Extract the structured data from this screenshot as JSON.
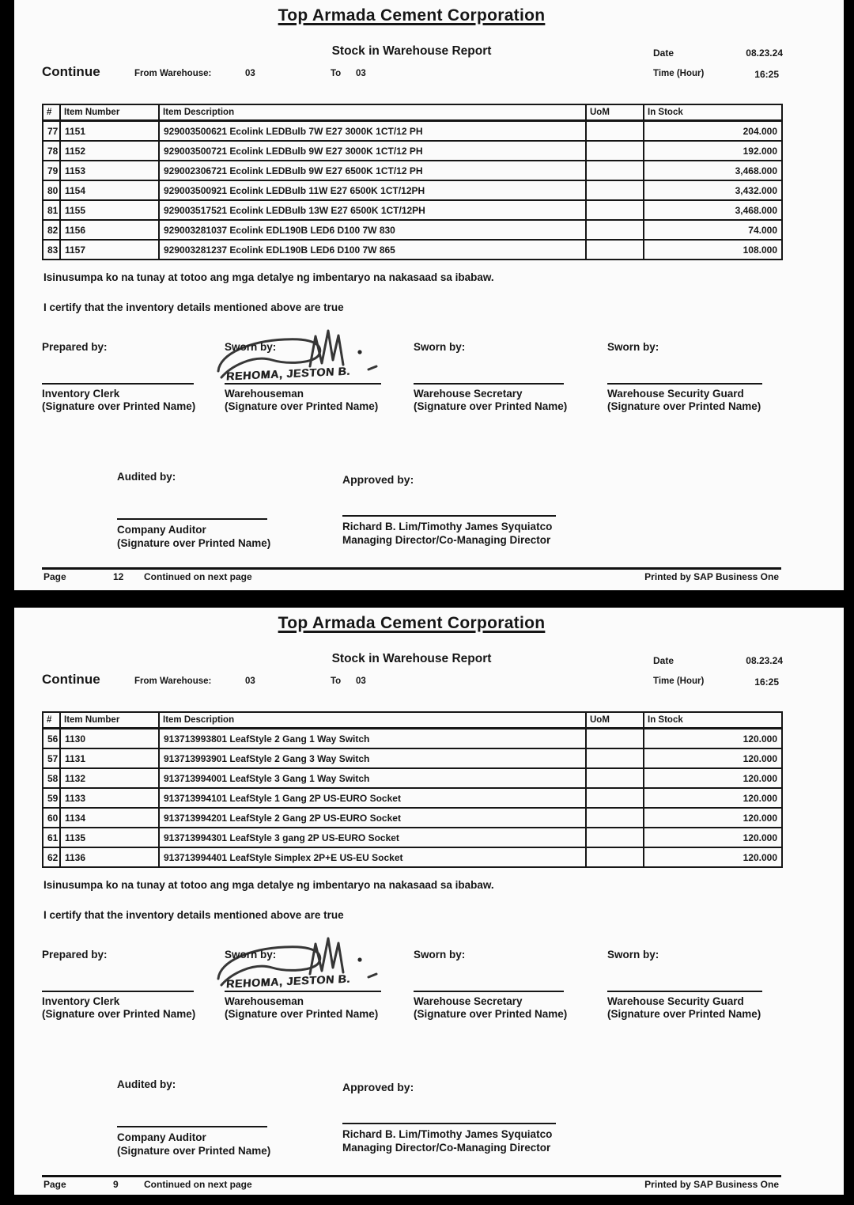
{
  "colors": {
    "surround": "#000000",
    "page_bg": "#fbfbfb",
    "text": "#161616"
  },
  "report": {
    "company": "Top Armada Cement Corporation",
    "title": "Stock in Warehouse Report",
    "continue_label": "Continue",
    "from_warehouse_label": "From Warehouse:",
    "from_warehouse": "03",
    "to_label": "To",
    "to_warehouse": "03",
    "date_label": "Date",
    "date": "08.23.24",
    "time_label": "Time (Hour)",
    "time": "16:25"
  },
  "table_headers": {
    "num": "#",
    "item_number": "Item Number",
    "item_description": "Item Description",
    "uom": "UoM",
    "in_stock": "In Stock"
  },
  "certification": {
    "tagalog": "Isinusumpa ko na tunay at totoo ang mga detalye ng imbentaryo na nakasaad sa ibabaw.",
    "english": "I certify that the inventory details mentioned above are true"
  },
  "signatures": {
    "prepared_by_label": "Prepared by:",
    "sworn_by_label": "Sworn by:",
    "handwritten_name": "REHOMA, JESTON B.",
    "role_1": "Inventory Clerk",
    "role_2": "Warehouseman",
    "role_3": "Warehouse Secretary",
    "role_4": "Warehouse Security Guard",
    "signature_caption": "(Signature over Printed Name)",
    "audited_by_label": "Audited by:",
    "auditor_role": "Company Auditor",
    "approved_by_label": "Approved by:",
    "approver_names": "Richard B. Lim/Timothy James Syquiatco",
    "approver_roles": "Managing Director/Co-Managing Director"
  },
  "footer": {
    "page_label": "Page",
    "continued": "Continued on next page",
    "printed_by": "Printed by SAP Business One"
  },
  "pages": [
    {
      "page_number": "12",
      "rows": [
        [
          "77",
          "1151",
          "929003500621 Ecolink LEDBulb 7W E27 3000K 1CT/12 PH",
          "",
          "204.000"
        ],
        [
          "78",
          "1152",
          "929003500721 Ecolink LEDBulb 9W E27 3000K 1CT/12 PH",
          "",
          "192.000"
        ],
        [
          "79",
          "1153",
          "929002306721 Ecolink LEDBulb 9W E27 6500K 1CT/12 PH",
          "",
          "3,468.000"
        ],
        [
          "80",
          "1154",
          "929003500921 Ecolink LEDBulb 11W E27 6500K 1CT/12PH",
          "",
          "3,432.000"
        ],
        [
          "81",
          "1155",
          "929003517521 Ecolink LEDBulb 13W E27 6500K 1CT/12PH",
          "",
          "3,468.000"
        ],
        [
          "82",
          "1156",
          "929003281037 Ecolink EDL190B LED6 D100 7W 830",
          "",
          "74.000"
        ],
        [
          "83",
          "1157",
          "929003281237 Ecolink EDL190B LED6 D100 7W 865",
          "",
          "108.000"
        ]
      ]
    },
    {
      "page_number": "9",
      "rows": [
        [
          "56",
          "1130",
          "913713993801 LeafStyle 2 Gang 1 Way Switch",
          "",
          "120.000"
        ],
        [
          "57",
          "1131",
          "913713993901 LeafStyle 2 Gang 3 Way Switch",
          "",
          "120.000"
        ],
        [
          "58",
          "1132",
          "913713994001 LeafStyle 3 Gang 1 Way Switch",
          "",
          "120.000"
        ],
        [
          "59",
          "1133",
          "913713994101 LeafStyle 1 Gang 2P US-EURO Socket",
          "",
          "120.000"
        ],
        [
          "60",
          "1134",
          "913713994201 LeafStyle 2 Gang 2P US-EURO Socket",
          "",
          "120.000"
        ],
        [
          "61",
          "1135",
          "913713994301 LeafStyle 3 gang 2P US-EURO Socket",
          "",
          "120.000"
        ],
        [
          "62",
          "1136",
          "913713994401 LeafStyle Simplex 2P+E US-EU Socket",
          "",
          "120.000"
        ]
      ]
    }
  ]
}
